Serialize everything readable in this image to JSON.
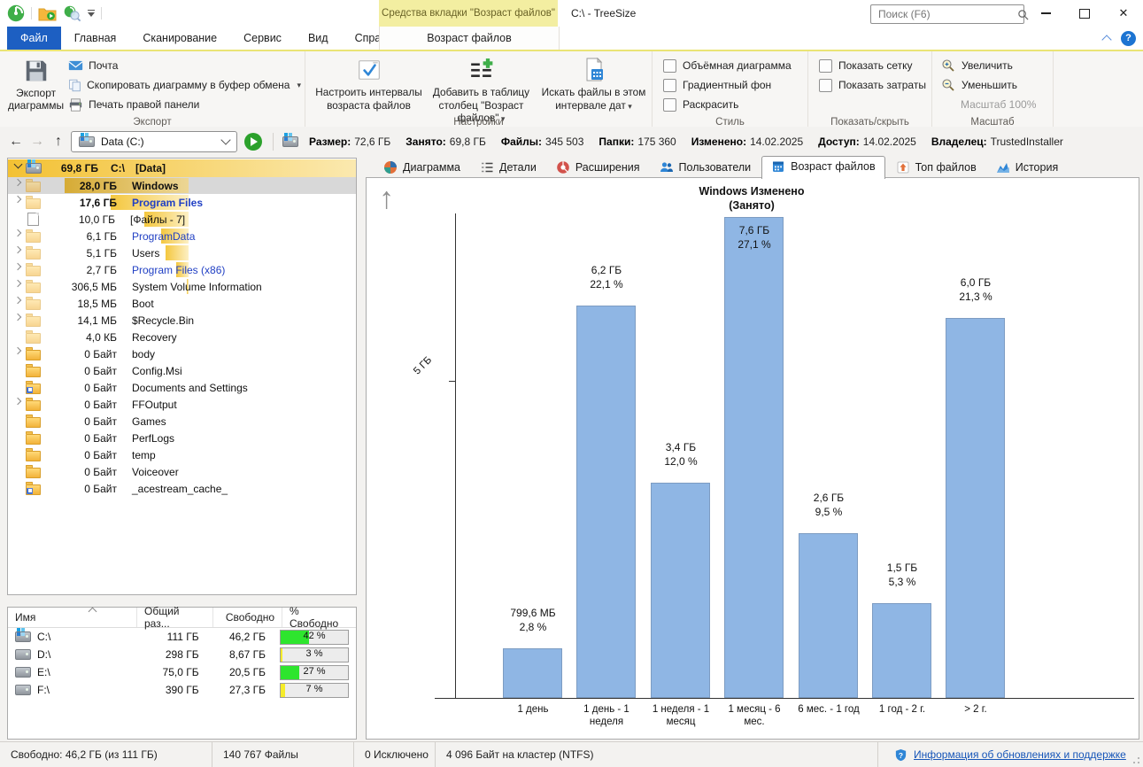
{
  "colors": {
    "accent_blue": "#1d5fc2",
    "contextual_yellow": "#f3eea1",
    "tree_gold": "#f3c133",
    "chart_bar_blue": "#8fb6e4",
    "drive_bar_green": "#2ee52e",
    "drive_bar_yellow": "#f5ec2a"
  },
  "titlebar": {
    "contextual_tab": "Средства вкладки \"Возраст файлов\"",
    "title": "C:\\ - TreeSize",
    "search_placeholder": "Поиск (F6)"
  },
  "menubar": {
    "items": [
      "Файл",
      "Главная",
      "Сканирование",
      "Сервис",
      "Вид",
      "Справка"
    ],
    "ribbon_tab": "Возраст файлов"
  },
  "ribbon": {
    "export_group": {
      "label": "Экспорт",
      "big_button": "Экспорт диаграммы",
      "items": [
        {
          "label": "Почта",
          "icon": "mail",
          "menu": false
        },
        {
          "label": "Скопировать диаграмму в буфер обмена",
          "icon": "copy",
          "menu": true
        },
        {
          "label": "Печать правой панели",
          "icon": "print",
          "menu": false
        }
      ]
    },
    "settings_group": {
      "label": "Настройки",
      "buttons": [
        {
          "label": "Настроить интервалы\nвозраста файлов",
          "icon": "intervals",
          "menu": false
        },
        {
          "label": "Добавить в таблицу\nстолбец \"Возраст файлов\"",
          "icon": "addcol",
          "menu": true
        },
        {
          "label": "Искать файлы в этом\nинтервале дат",
          "icon": "searchdates",
          "menu": true
        }
      ]
    },
    "style_group": {
      "label": "Стиль",
      "checkboxes": [
        "Объёмная диаграмма",
        "Градиентный фон",
        "Раскрасить"
      ]
    },
    "show_group": {
      "label": "Показать/скрыть",
      "checkboxes": [
        "Показать сетку",
        "Показать затраты"
      ]
    },
    "zoom_group": {
      "label": "Масштаб",
      "buttons": [
        {
          "label": "Увеличить",
          "icon": "zoomin"
        },
        {
          "label": "Уменьшить",
          "icon": "zoomout"
        }
      ],
      "zoom_level": "Масштаб 100%"
    }
  },
  "addressbar": {
    "path": "Data (C:)",
    "stats": [
      {
        "label": "Размер:",
        "value": "72,6 ГБ"
      },
      {
        "label": "Занято:",
        "value": "69,8 ГБ"
      },
      {
        "label": "Файлы:",
        "value": "345 503"
      },
      {
        "label": "Папки:",
        "value": "175 360"
      },
      {
        "label": "Изменено:",
        "value": "14.02.2025"
      },
      {
        "label": "Доступ:",
        "value": "14.02.2025"
      },
      {
        "label": "Владелец:",
        "value": "TrustedInstaller"
      }
    ]
  },
  "tree": {
    "root": {
      "size": "69,8 ГБ",
      "path": "C:\\",
      "name": "[Data]"
    },
    "items": [
      {
        "size": "28,0 ГБ",
        "name": "Windows",
        "gb": 28.0,
        "expand": true,
        "selected": true,
        "bold": true,
        "color": "dark",
        "pale": true
      },
      {
        "size": "17,6 ГБ",
        "name": "Program Files",
        "gb": 17.6,
        "expand": true,
        "bold": true,
        "color": "blue",
        "pale": true
      },
      {
        "size": "10,0 ГБ",
        "name": "[Файлы - 7]",
        "gb": 10.0,
        "expand": false,
        "icon": "file",
        "color": "dark"
      },
      {
        "size": "6,1 ГБ",
        "name": "ProgramData",
        "gb": 6.1,
        "expand": true,
        "color": "blue",
        "pale": true
      },
      {
        "size": "5,1 ГБ",
        "name": "Users",
        "gb": 5.1,
        "expand": true,
        "color": "dark",
        "pale": true
      },
      {
        "size": "2,7 ГБ",
        "name": "Program Files (x86)",
        "gb": 2.7,
        "expand": true,
        "color": "blue",
        "pale": true
      },
      {
        "size": "306,5 МБ",
        "name": "System Volume Information",
        "gb": 0.3,
        "expand": true,
        "color": "dark",
        "pale": true
      },
      {
        "size": "18,5 МБ",
        "name": "Boot",
        "gb": 0.018,
        "expand": true,
        "color": "dark",
        "pale": true
      },
      {
        "size": "14,1 МБ",
        "name": "$Recycle.Bin",
        "gb": 0.014,
        "expand": true,
        "color": "dark",
        "pale": true
      },
      {
        "size": "4,0 КБ",
        "name": "Recovery",
        "gb": 0,
        "expand": false,
        "color": "dark",
        "pale": true
      },
      {
        "size": "0 Байт",
        "name": "body",
        "gb": 0,
        "expand": true,
        "color": "dark"
      },
      {
        "size": "0 Байт",
        "name": "Config.Msi",
        "gb": 0,
        "expand": false,
        "color": "dark"
      },
      {
        "size": "0 Байт",
        "name": "Documents and Settings",
        "gb": 0,
        "expand": false,
        "icon": "folder-link",
        "color": "dark"
      },
      {
        "size": "0 Байт",
        "name": "FFOutput",
        "gb": 0,
        "expand": true,
        "color": "dark"
      },
      {
        "size": "0 Байт",
        "name": "Games",
        "gb": 0,
        "expand": false,
        "color": "dark"
      },
      {
        "size": "0 Байт",
        "name": "PerfLogs",
        "gb": 0,
        "expand": false,
        "color": "dark"
      },
      {
        "size": "0 Байт",
        "name": "temp",
        "gb": 0,
        "expand": false,
        "color": "dark"
      },
      {
        "size": "0 Байт",
        "name": "Voiceover",
        "gb": 0,
        "expand": false,
        "color": "dark"
      },
      {
        "size": "0 Байт",
        "name": "_acestream_cache_",
        "gb": 0,
        "expand": false,
        "icon": "folder-link",
        "color": "dark"
      }
    ]
  },
  "drives": {
    "headers": [
      "Имя",
      "Общий раз...",
      "Свободно",
      "% Свободно"
    ],
    "rows": [
      {
        "name": "C:\\",
        "total": "111 ГБ",
        "free": "46,2 ГБ",
        "pct": 42,
        "pct_label": "42 %",
        "bar_color": "#2ee52e",
        "flag": true
      },
      {
        "name": "D:\\",
        "total": "298 ГБ",
        "free": "8,67 ГБ",
        "pct": 3,
        "pct_label": "3 %",
        "bar_color": "#f5ec2a",
        "flag": false
      },
      {
        "name": "E:\\",
        "total": "75,0 ГБ",
        "free": "20,5 ГБ",
        "pct": 27,
        "pct_label": "27 %",
        "bar_color": "#2ee52e",
        "flag": false
      },
      {
        "name": "F:\\",
        "total": "390 ГБ",
        "free": "27,3 ГБ",
        "pct": 7,
        "pct_label": "7 %",
        "bar_color": "#f5ec2a",
        "flag": false
      }
    ]
  },
  "view_tabs": [
    {
      "label": "Диаграмма",
      "icon": "pie",
      "active": false
    },
    {
      "label": "Детали",
      "icon": "list",
      "active": false
    },
    {
      "label": "Расширения",
      "icon": "extensions",
      "active": false
    },
    {
      "label": "Пользователи",
      "icon": "users",
      "active": false
    },
    {
      "label": "Возраст файлов",
      "icon": "calendar",
      "active": true
    },
    {
      "label": "Топ файлов",
      "icon": "top",
      "active": false
    },
    {
      "label": "История",
      "icon": "history",
      "active": false
    }
  ],
  "chart_data": {
    "type": "bar",
    "title": "Windows Изменено",
    "subtitle": "(Занято)",
    "categories": [
      "1 день",
      "1 день - 1\nнеделя",
      "1 неделя - 1\nмесяц",
      "1 месяц - 6\nмес.",
      "6 мес. - 1 год",
      "1 год - 2 г.",
      "> 2 г."
    ],
    "values_gb": [
      0.78,
      6.2,
      3.4,
      7.6,
      2.6,
      1.5,
      6.0
    ],
    "value_labels": [
      "799,6 МБ",
      "6,2 ГБ",
      "3,4 ГБ",
      "7,6 ГБ",
      "2,6 ГБ",
      "1,5 ГБ",
      "6,0 ГБ"
    ],
    "pct_labels": [
      "2,8 %",
      "22,1 %",
      "12,0 %",
      "27,1 %",
      "9,5 %",
      "5,3 %",
      "21,3 %"
    ],
    "xlabel": "",
    "ylabel": "",
    "y_tick_label": "5 ГБ",
    "y_tick_value_gb": 5,
    "ylim_gb": [
      0,
      8.2
    ],
    "grid": false,
    "legend": false,
    "bar_color": "#8fb6e4"
  },
  "statusbar": {
    "items": [
      "Свободно: 46,2 ГБ  (из 111 ГБ)",
      "140 767 Файлы",
      "0 Исключено",
      "4 096 Байт на кластер (NTFS)"
    ],
    "link": "Информация об обновлениях и поддержке"
  }
}
